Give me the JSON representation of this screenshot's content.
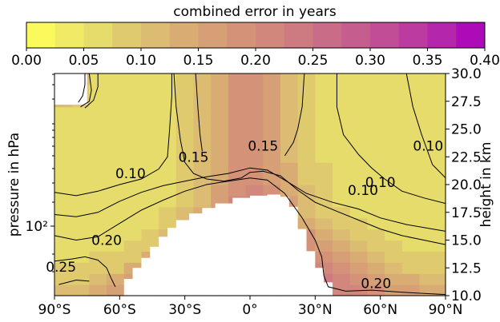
{
  "chart_data": {
    "type": "heatmap",
    "title": "",
    "colorbar": {
      "label": "combined error in years",
      "min": 0.0,
      "max": 0.4,
      "step": 0.025,
      "ticks": [
        "0.00",
        "0.05",
        "0.10",
        "0.15",
        "0.20",
        "0.25",
        "0.30",
        "0.35",
        "0.40"
      ],
      "colors": [
        "#fbfa5c",
        "#f0ea66",
        "#e5dc6b",
        "#dfcb6e",
        "#dcbc72",
        "#d9ac73",
        "#d69f76",
        "#d49278",
        "#d1877c",
        "#cd7a81",
        "#c96c87",
        "#c55d8e",
        "#c14d96",
        "#bb3ba0",
        "#b426ab",
        "#ad0bb8"
      ],
      "location": "top"
    },
    "xlabel": "",
    "ylabel_left": "pressure in hPa",
    "ylabel_right": "height in km",
    "x_ticks": [
      "90°S",
      "60°S",
      "30°S",
      "0°",
      "30°N",
      "60°N",
      "90°N"
    ],
    "x_range": [
      -90,
      90
    ],
    "y_left_scale": "log",
    "y_left_ticks": [
      "10²"
    ],
    "y_right_range": [
      10.0,
      30.0
    ],
    "y_right_ticks": [
      "10.0",
      "12.5",
      "15.0",
      "17.5",
      "20.0",
      "22.5",
      "25.0",
      "27.5",
      "30.0"
    ],
    "contour_labels": [
      {
        "text": "0.10",
        "lat": -55,
        "km": 21.0
      },
      {
        "text": "0.15",
        "lat": -26,
        "km": 22.5
      },
      {
        "text": "0.15",
        "lat": 6,
        "km": 23.5
      },
      {
        "text": "0.10",
        "lat": 82,
        "km": 23.5
      },
      {
        "text": "0.10",
        "lat": 60,
        "km": 20.2
      },
      {
        "text": "0.10",
        "lat": 52,
        "km": 19.5
      },
      {
        "text": "0.20",
        "lat": -66,
        "km": 15.0
      },
      {
        "text": "0.20",
        "lat": 58,
        "km": 11.1
      },
      {
        "text": "0.25",
        "lat": -87,
        "km": 12.6
      }
    ]
  }
}
